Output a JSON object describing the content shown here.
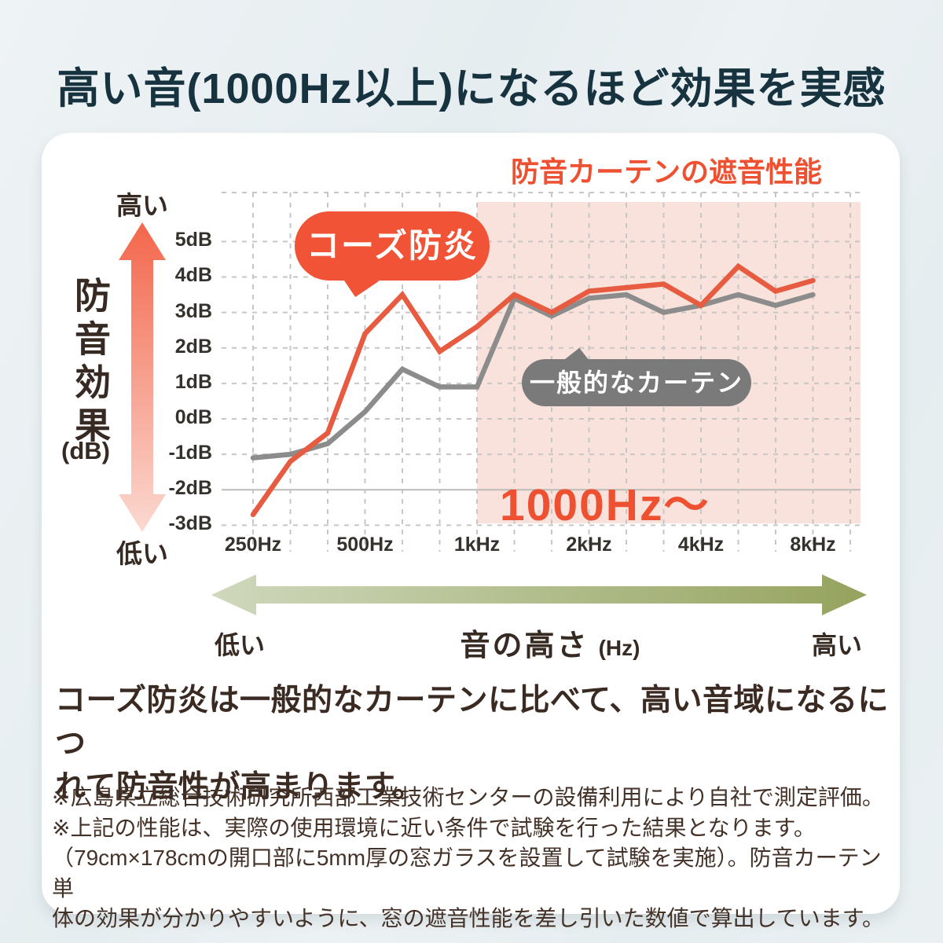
{
  "page": {
    "title": "高い音(1000Hz以上)になるほど効果を実感"
  },
  "axis_left": {
    "high": "高い",
    "title": "防音効果",
    "unit": "(dB)",
    "low": "低い"
  },
  "freq_axis": {
    "low": "低い",
    "label": "音の高さ",
    "unit": "(Hz)",
    "high": "高い"
  },
  "description": {
    "line1": "コーズ防炎は一般的なカーテンに比べて、高い音域になるにつ",
    "line2": "れて防音性が高まります。"
  },
  "footnotes": [
    "※広島県立総合技術研究所西部工業技術センターの設備利用により自社で測定評価。",
    "※上記の性能は、実際の使用環境に近い条件で試験を行った結果となります。",
    "（79cm×178cmの開口部に5mm厚の窓ガラスを設置して試験を実施）。防音カーテン単",
    "体の効果が分かりやすいように、窓の遮音性能を差し引いた数値で算出しています。"
  ],
  "colors": {
    "accent_orange": "#ee5132",
    "bubble_orange": "#f15336",
    "line_orange": "#e75b40",
    "line_gray": "#8c8c8c",
    "pill_gray": "#7a7a7a",
    "highlight_pink": "#f8e2db",
    "grid_gray": "#c7c6c5",
    "title_dark": "#17333f"
  },
  "chart_data": {
    "type": "line",
    "title": "防音カーテンの遮音性能",
    "xlabel": "音の高さ (Hz)",
    "ylabel": "防音効果 (dB)",
    "ylim": [
      -3,
      5
    ],
    "grid": true,
    "x_bands_hz": [
      250,
      315,
      400,
      500,
      630,
      800,
      1000,
      1250,
      1600,
      2000,
      2500,
      3150,
      4000,
      5000,
      6300,
      8000
    ],
    "x_tick_labels": [
      "250Hz",
      "500Hz",
      "1kHz",
      "2kHz",
      "4kHz",
      "8kHz"
    ],
    "x_tick_band_indices": [
      0,
      3,
      6,
      9,
      12,
      15
    ],
    "y_tick_labels": [
      "5dB",
      "4dB",
      "3dB",
      "2dB",
      "1dB",
      "0dB",
      "-1dB",
      "-2dB",
      "-3dB"
    ],
    "y_tick_values": [
      5,
      4,
      3,
      2,
      1,
      0,
      -1,
      -2,
      -3
    ],
    "highlight": {
      "label": "1000Hz〜",
      "from_band_index": 6,
      "color": "#f8e2db"
    },
    "series": [
      {
        "name": "コーズ防炎",
        "color": "#e75b40",
        "values": [
          -2.7,
          -1.2,
          -0.4,
          2.4,
          3.5,
          1.9,
          2.6,
          3.5,
          3.0,
          3.6,
          3.7,
          3.8,
          3.2,
          4.3,
          3.6,
          3.9
        ]
      },
      {
        "name": "一般的なカーテン",
        "color": "#8c8c8c",
        "values": [
          -1.1,
          -1.0,
          -0.7,
          0.2,
          1.4,
          0.9,
          0.9,
          3.4,
          2.9,
          3.4,
          3.5,
          3.0,
          3.2,
          3.5,
          3.2,
          3.5
        ]
      }
    ]
  }
}
